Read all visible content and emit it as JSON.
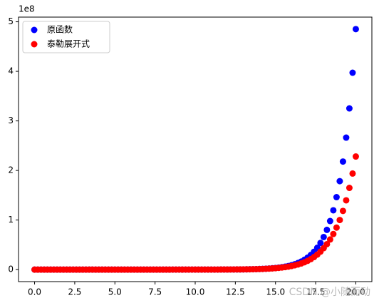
{
  "chart_data": {
    "type": "scatter",
    "offset_label": "1e8",
    "watermark": "CSDN @小随而动",
    "x": [
      0,
      0.2,
      0.4,
      0.6,
      0.8,
      1,
      1.2,
      1.4,
      1.6,
      1.8,
      2,
      2.2,
      2.4,
      2.6,
      2.8,
      3,
      3.2,
      3.4,
      3.6,
      3.8,
      4,
      4.2,
      4.4,
      4.6,
      4.8,
      5,
      5.2,
      5.4,
      5.6,
      5.8,
      6,
      6.2,
      6.4,
      6.6,
      6.8,
      7,
      7.2,
      7.4,
      7.6,
      7.8,
      8,
      8.2,
      8.4,
      8.6,
      8.8,
      9,
      9.2,
      9.4,
      9.6,
      9.8,
      10,
      10.2,
      10.4,
      10.6,
      10.8,
      11,
      11.2,
      11.4,
      11.6,
      11.8,
      12,
      12.2,
      12.4,
      12.6,
      12.8,
      13,
      13.2,
      13.4,
      13.6,
      13.8,
      14,
      14.2,
      14.4,
      14.6,
      14.8,
      15,
      15.2,
      15.4,
      15.6,
      15.8,
      16,
      16.2,
      16.4,
      16.6,
      16.8,
      17,
      17.2,
      17.4,
      17.6,
      17.8,
      18,
      18.2,
      18.4,
      18.6,
      18.8,
      19,
      19.2,
      19.4,
      19.6,
      19.8,
      20
    ],
    "series": [
      {
        "name": "原函数",
        "color": "#0000ff",
        "values": [
          0,
          0,
          0,
          0,
          0,
          0,
          0,
          0,
          0,
          0,
          0,
          0,
          0,
          0,
          0,
          0,
          0,
          0,
          0,
          0,
          0,
          0,
          0,
          0,
          0,
          0,
          0,
          0,
          0,
          0,
          0,
          0,
          0,
          0,
          0,
          0,
          0,
          0,
          0,
          0,
          0,
          0,
          0,
          0.0001,
          0.0001,
          0.0001,
          0.0001,
          0.0001,
          0.0001,
          0.0002,
          0.0002,
          0.0003,
          0.0003,
          0.0004,
          0.0005,
          0.0006,
          0.0007,
          0.0009,
          0.0011,
          0.0013,
          0.0016,
          0.002,
          0.0024,
          0.003,
          0.0036,
          0.0044,
          0.0054,
          0.0066,
          0.0081,
          0.0098,
          0.012,
          0.0147,
          0.0179,
          0.0219,
          0.0268,
          0.0327,
          0.0399,
          0.0488,
          0.0596,
          0.0728,
          0.0889,
          0.1085,
          0.1326,
          0.1619,
          0.1978,
          0.2415,
          0.295,
          0.3603,
          0.4401,
          0.5376,
          0.6566,
          0.802,
          0.9795,
          1.1964,
          1.4613,
          1.7848,
          2.18,
          2.6626,
          3.2522,
          3.9722,
          4.8517
        ]
      },
      {
        "name": "泰勒展开式",
        "color": "#ff0000",
        "values": [
          0,
          0,
          0,
          0,
          0,
          0,
          0,
          0,
          0,
          0,
          0,
          0,
          0,
          0,
          0,
          0,
          0,
          0,
          0,
          0,
          0,
          0,
          0,
          0,
          0,
          0,
          0,
          0,
          0,
          0,
          0,
          0,
          0,
          0,
          0,
          0,
          0,
          0,
          0,
          0,
          0,
          0,
          0,
          0.0001,
          0.0001,
          0.0001,
          0.0001,
          0.0001,
          0.0001,
          0.0002,
          0.0002,
          0.0003,
          0.0003,
          0.0004,
          0.0005,
          0.0006,
          0.0007,
          0.0009,
          0.0011,
          0.0013,
          0.0016,
          0.0019,
          0.0024,
          0.0029,
          0.0035,
          0.0042,
          0.0051,
          0.0062,
          0.0076,
          0.0092,
          0.0111,
          0.0134,
          0.0163,
          0.0196,
          0.0237,
          0.0286,
          0.0345,
          0.0416,
          0.05,
          0.0601,
          0.0722,
          0.0865,
          0.1034,
          0.1237,
          0.1477,
          0.1765,
          0.2115,
          0.2533,
          0.3028,
          0.3623,
          0.433,
          0.5133,
          0.6073,
          0.7178,
          0.8476,
          1.0006,
          1.1837,
          1.3979,
          1.6489,
          1.9384,
          2.2818
        ]
      }
    ],
    "xlim": [
      -1,
      21
    ],
    "ylim": [
      -0.2426,
      5.0943
    ],
    "xticks": [
      {
        "value": 0,
        "label": "0.0"
      },
      {
        "value": 2.5,
        "label": "2.5"
      },
      {
        "value": 5,
        "label": "5.0"
      },
      {
        "value": 7.5,
        "label": "7.5"
      },
      {
        "value": 10,
        "label": "10.0"
      },
      {
        "value": 12.5,
        "label": "12.5"
      },
      {
        "value": 15,
        "label": "15.0"
      },
      {
        "value": 17.5,
        "label": "17.5"
      },
      {
        "value": 20,
        "label": "20.0"
      }
    ],
    "yticks": [
      0,
      1,
      2,
      3,
      4,
      5
    ],
    "legend": "upper left"
  }
}
